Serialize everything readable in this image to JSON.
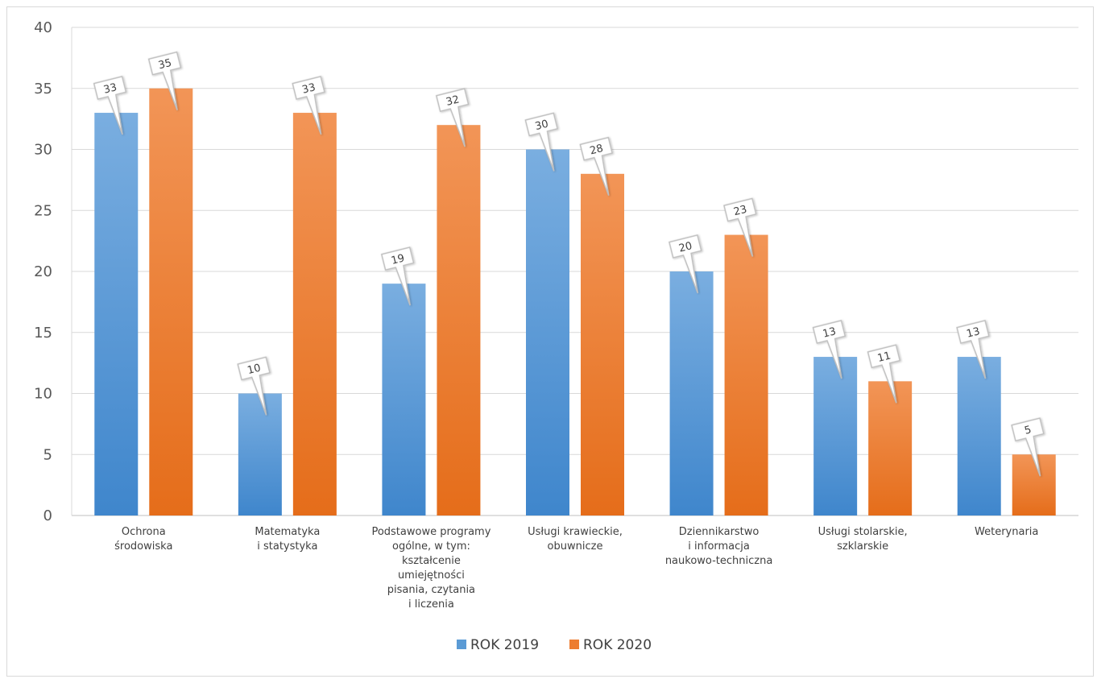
{
  "chart_data": {
    "type": "bar",
    "categories": [
      [
        "Ochrona",
        "środowiska"
      ],
      [
        "Matematyka",
        "i statystyka"
      ],
      [
        "Podstawowe programy",
        "ogólne, w tym:",
        "kształcenie",
        "umiejętności",
        "pisania, czytania",
        "i liczenia"
      ],
      [
        "Usługi krawieckie,",
        "obuwnicze"
      ],
      [
        "Dziennikarstwo",
        "i informacja",
        "naukowo-techniczna"
      ],
      [
        "Usługi stolarskie,",
        "szklarskie"
      ],
      [
        "Weterynaria"
      ]
    ],
    "series": [
      {
        "name": "ROK 2019",
        "color": "#5b9bd5",
        "values": [
          33,
          10,
          19,
          30,
          20,
          13,
          13
        ]
      },
      {
        "name": "ROK 2020",
        "color": "#ed7d31",
        "values": [
          35,
          33,
          32,
          28,
          23,
          11,
          5
        ]
      }
    ],
    "ylim": [
      0,
      40
    ],
    "yticks": [
      0,
      5,
      10,
      15,
      20,
      25,
      30,
      35,
      40
    ],
    "grid": true,
    "legend_position": "bottom",
    "data_labels": "callout"
  }
}
